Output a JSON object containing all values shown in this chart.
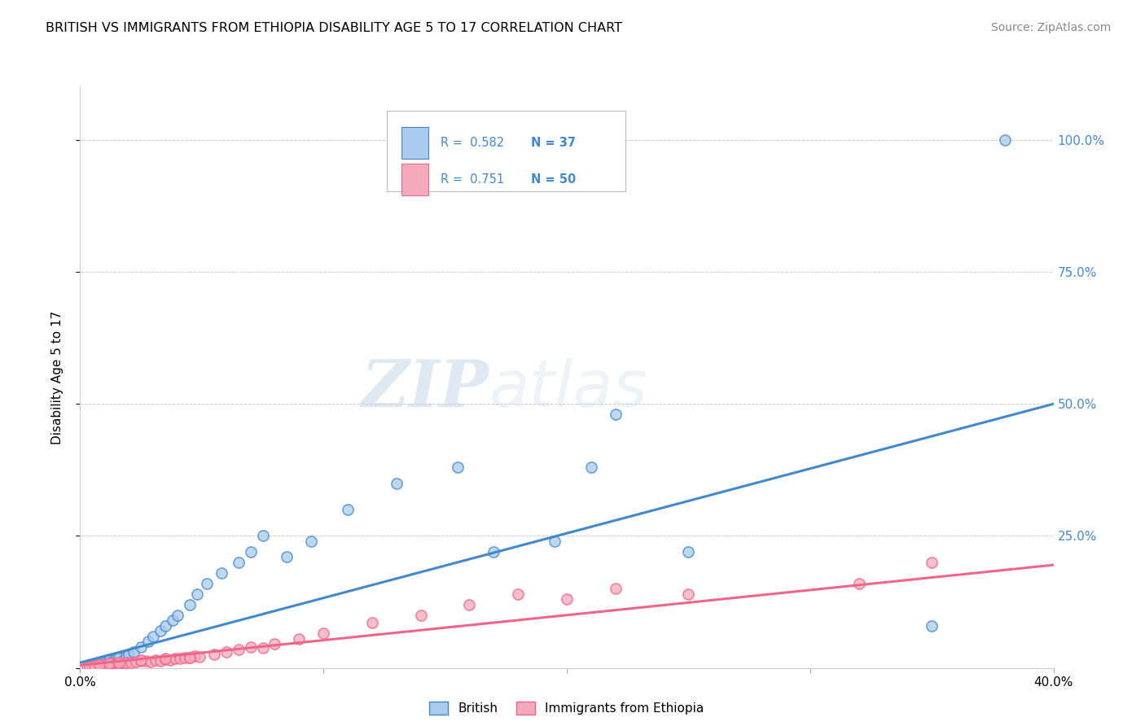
{
  "title": "BRITISH VS IMMIGRANTS FROM ETHIOPIA DISABILITY AGE 5 TO 17 CORRELATION CHART",
  "source": "Source: ZipAtlas.com",
  "ylabel": "Disability Age 5 to 17",
  "xlabel_british": "British",
  "xlabel_ethiopia": "Immigrants from Ethiopia",
  "R_british": 0.582,
  "N_british": 37,
  "R_ethiopia": 0.751,
  "N_ethiopia": 50,
  "xmin": 0.0,
  "xmax": 0.4,
  "ymin": 0.0,
  "ymax": 1.1,
  "xticks": [
    0.0,
    0.1,
    0.2,
    0.3,
    0.4
  ],
  "xticklabels": [
    "0.0%",
    "",
    "",
    "",
    "40.0%"
  ],
  "yticks": [
    0.0,
    0.25,
    0.5,
    0.75,
    1.0
  ],
  "yticklabels": [
    "",
    "25.0%",
    "50.0%",
    "75.0%",
    "100.0%"
  ],
  "british_color": "#aaccee",
  "ethiopia_color": "#f5aabb",
  "trendline_british_color": "#4488cc",
  "trendline_ethiopia_color": "#ee6688",
  "watermark_zip": "ZIP",
  "watermark_atlas": "atlas",
  "british_x": [
    0.005,
    0.008,
    0.01,
    0.012,
    0.013,
    0.015,
    0.016,
    0.018,
    0.019,
    0.02,
    0.022,
    0.025,
    0.028,
    0.03,
    0.033,
    0.035,
    0.038,
    0.04,
    0.045,
    0.048,
    0.052,
    0.058,
    0.065,
    0.07,
    0.075,
    0.085,
    0.095,
    0.11,
    0.13,
    0.155,
    0.17,
    0.195,
    0.21,
    0.22,
    0.25,
    0.35,
    0.38
  ],
  "british_y": [
    0.005,
    0.008,
    0.01,
    0.015,
    0.012,
    0.018,
    0.02,
    0.015,
    0.022,
    0.025,
    0.03,
    0.04,
    0.05,
    0.06,
    0.07,
    0.08,
    0.09,
    0.1,
    0.12,
    0.14,
    0.16,
    0.18,
    0.2,
    0.22,
    0.25,
    0.21,
    0.24,
    0.3,
    0.35,
    0.38,
    0.22,
    0.24,
    0.38,
    0.48,
    0.22,
    0.08,
    1.0
  ],
  "ethiopia_x": [
    0.003,
    0.005,
    0.007,
    0.009,
    0.011,
    0.013,
    0.015,
    0.016,
    0.018,
    0.019,
    0.021,
    0.023,
    0.025,
    0.027,
    0.029,
    0.031,
    0.033,
    0.035,
    0.037,
    0.039,
    0.041,
    0.043,
    0.045,
    0.047,
    0.049,
    0.055,
    0.06,
    0.065,
    0.07,
    0.075,
    0.08,
    0.09,
    0.1,
    0.12,
    0.14,
    0.16,
    0.18,
    0.2,
    0.22,
    0.25,
    0.004,
    0.006,
    0.008,
    0.012,
    0.016,
    0.025,
    0.035,
    0.045,
    0.32,
    0.35
  ],
  "ethiopia_y": [
    0.003,
    0.004,
    0.005,
    0.006,
    0.007,
    0.008,
    0.008,
    0.007,
    0.009,
    0.01,
    0.011,
    0.012,
    0.013,
    0.014,
    0.012,
    0.015,
    0.014,
    0.016,
    0.015,
    0.018,
    0.018,
    0.02,
    0.019,
    0.022,
    0.021,
    0.025,
    0.03,
    0.035,
    0.04,
    0.038,
    0.045,
    0.055,
    0.065,
    0.085,
    0.1,
    0.12,
    0.14,
    0.13,
    0.15,
    0.14,
    0.003,
    0.004,
    0.005,
    0.008,
    0.01,
    0.015,
    0.018,
    0.02,
    0.16,
    0.2
  ],
  "trendline_british_x0": 0.0,
  "trendline_british_y0": 0.01,
  "trendline_british_x1": 0.4,
  "trendline_british_y1": 0.5,
  "trendline_ethiopia_x0": 0.0,
  "trendline_ethiopia_y0": 0.005,
  "trendline_ethiopia_x1": 0.4,
  "trendline_ethiopia_y1": 0.195
}
